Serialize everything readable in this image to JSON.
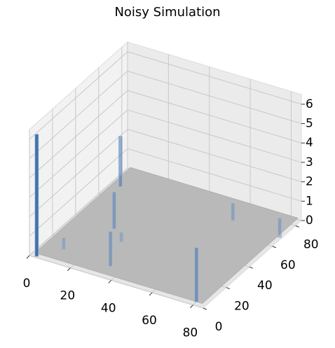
{
  "chart_data": {
    "type": "bar3d",
    "title": "Noisy Simulation",
    "xlim": [
      0,
      85
    ],
    "ylim": [
      0,
      85
    ],
    "zlim": [
      0,
      6.5
    ],
    "xticks": [
      0,
      20,
      40,
      60,
      80
    ],
    "yticks": [
      0,
      20,
      40,
      60,
      80
    ],
    "zticks": [
      0,
      1,
      2,
      3,
      4,
      5,
      6
    ],
    "grid": true,
    "color": "#3b6ea8",
    "floor_color": "#b9b9b9",
    "bars": {
      "x": [
        3,
        5,
        20,
        34,
        80,
        84,
        60,
        10,
        28
      ],
      "y": [
        1,
        70,
        38,
        10,
        3,
        68,
        70,
        12,
        30
      ],
      "values": [
        6.3,
        2.6,
        1.9,
        1.8,
        2.8,
        1.0,
        0.9,
        0.6,
        0.5
      ]
    }
  }
}
